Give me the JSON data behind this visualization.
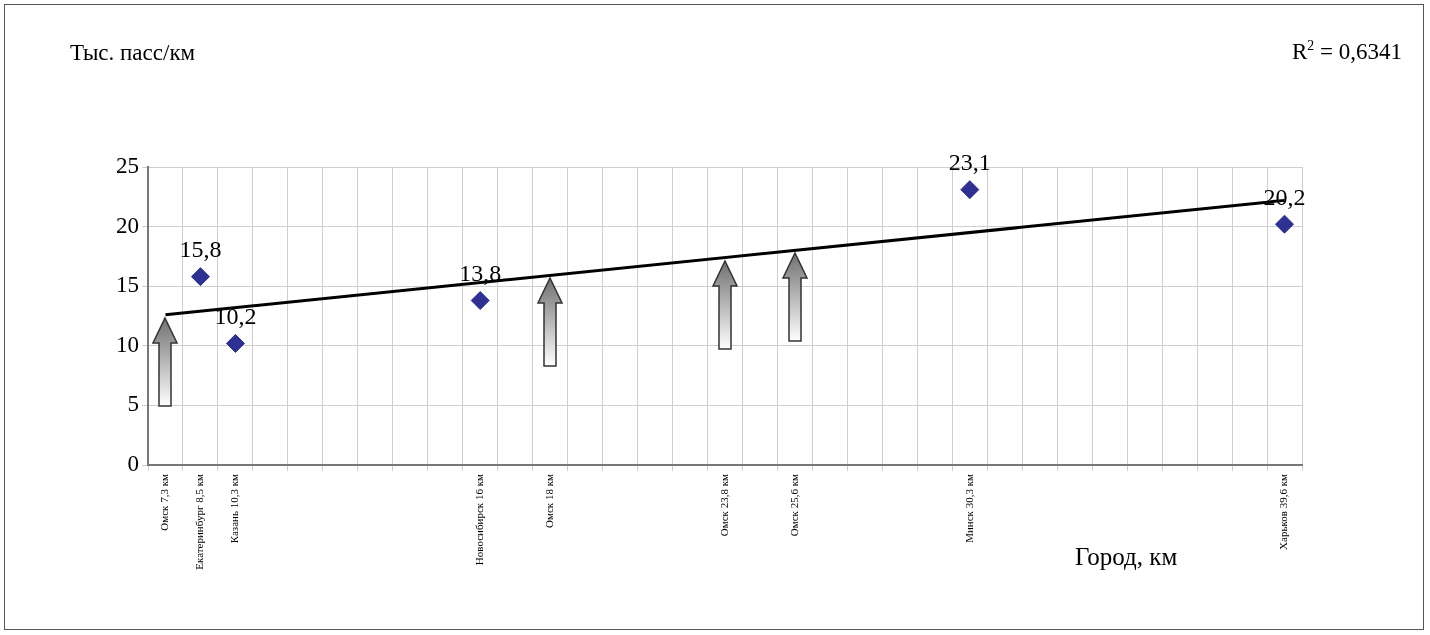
{
  "chart_data": {
    "type": "scatter",
    "ylabel": "Тыс. пасс/км",
    "xlabel": "Город, км",
    "annotations": [
      "R$^{2}$ = 0,6341"
    ],
    "categories": [
      "Омск 7,3 км",
      "Екатеринбург 8,5 км",
      "Казань 10,3 км",
      null,
      null,
      null,
      null,
      null,
      null,
      "Новосибирск 16 км",
      null,
      "Омск 18 км",
      null,
      null,
      null,
      null,
      "Омск 23,8 км",
      null,
      "Омск 25,6 км",
      null,
      null,
      null,
      null,
      "Минск 30,3 км",
      null,
      null,
      null,
      null,
      null,
      null,
      null,
      null,
      "Харьков 39,6 км"
    ],
    "series": [
      {
        "color": "#2e3192",
        "marker": "diamond",
        "values": [
          null,
          15.8,
          10.2,
          null,
          null,
          null,
          null,
          null,
          null,
          13.8,
          null,
          null,
          null,
          null,
          null,
          null,
          null,
          null,
          null,
          null,
          null,
          null,
          null,
          23.1,
          null,
          null,
          null,
          null,
          null,
          null,
          null,
          null,
          20.2
        ],
        "value_labels": [
          null,
          "15,8",
          "10,2",
          null,
          null,
          null,
          null,
          null,
          null,
          "13,8",
          null,
          null,
          null,
          null,
          null,
          null,
          null,
          null,
          null,
          null,
          null,
          null,
          null,
          "23,1",
          null,
          null,
          null,
          null,
          null,
          null,
          null,
          null,
          "20,2"
        ]
      },
      {
        "type": "line",
        "color": "#000000",
        "marker": "none",
        "x": [
          "Омск 7,3 км",
          "Харьков 39,6 км"
        ],
        "values": [
          12.6,
          22.2
        ]
      }
    ],
    "grid": true,
    "legend": false,
    "ylim": [
      0,
      25
    ],
    "yticks": [
      0,
      5,
      10,
      15,
      20,
      25
    ]
  }
}
